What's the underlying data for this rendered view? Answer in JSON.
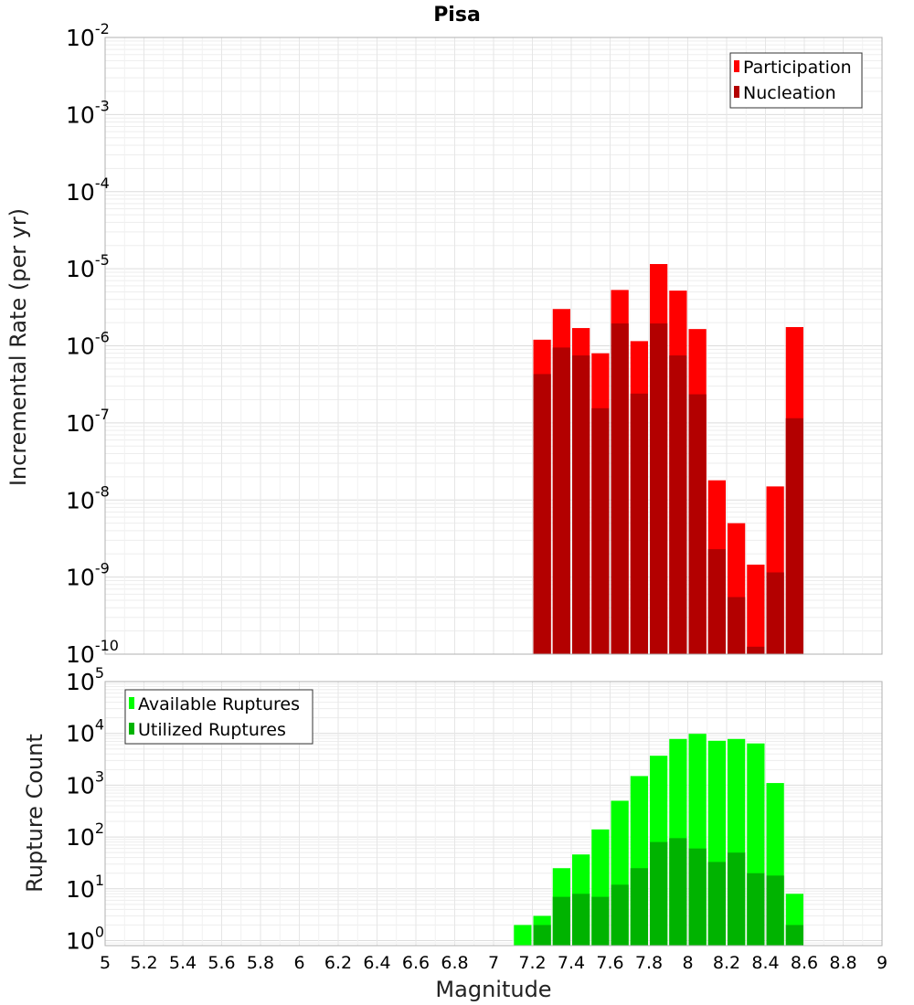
{
  "title": "Pisa",
  "colors": {
    "participation": "#ff0000",
    "nucleation": "#b30000",
    "available": "#00ff00",
    "utilized": "#00b300",
    "grid": "#e6e6e6",
    "frame": "#b0b0b0"
  },
  "chart_data": [
    {
      "type": "bar",
      "subtitle": "",
      "xlabel": "Magnitude",
      "ylabel": "Incremental Rate (per yr)",
      "y_scale": "log",
      "ylim": [
        1e-10,
        0.01
      ],
      "xlim": [
        5,
        9
      ],
      "grid": true,
      "legend_position": "top-right",
      "y_ticks": [
        {
          "base": "10",
          "exp": "-10"
        },
        {
          "base": "10",
          "exp": "-9"
        },
        {
          "base": "10",
          "exp": "-8"
        },
        {
          "base": "10",
          "exp": "-7"
        },
        {
          "base": "10",
          "exp": "-6"
        },
        {
          "base": "10",
          "exp": "-5"
        },
        {
          "base": "10",
          "exp": "-4"
        },
        {
          "base": "10",
          "exp": "-3"
        },
        {
          "base": "10",
          "exp": "-2"
        }
      ],
      "x": [
        7.25,
        7.35,
        7.45,
        7.55,
        7.65,
        7.75,
        7.85,
        7.95,
        8.05,
        8.15,
        8.25,
        8.35,
        8.45,
        8.55
      ],
      "series": [
        {
          "name": "Participation",
          "values": [
            1.2e-06,
            3e-06,
            1.7e-06,
            8e-07,
            5.3e-06,
            1.15e-06,
            1.15e-05,
            5.2e-06,
            1.65e-06,
            1.8e-08,
            5e-09,
            1.45e-09,
            1.5e-08,
            1.75e-06
          ]
        },
        {
          "name": "Nucleation",
          "values": [
            4.3e-07,
            9.5e-07,
            7.5e-07,
            1.55e-07,
            1.95e-06,
            2.4e-07,
            1.95e-06,
            7.5e-07,
            2.35e-07,
            2.3e-09,
            5.5e-10,
            1.25e-10,
            1.15e-09,
            1.15e-07
          ]
        }
      ]
    },
    {
      "type": "bar",
      "xlabel": "Magnitude",
      "ylabel": "Rupture Count",
      "y_scale": "log",
      "ylim": [
        0.8,
        100000
      ],
      "xlim": [
        5,
        9
      ],
      "grid": true,
      "legend_position": "top-left",
      "y_ticks": [
        {
          "base": "10",
          "exp": "0"
        },
        {
          "base": "10",
          "exp": "1"
        },
        {
          "base": "10",
          "exp": "2"
        },
        {
          "base": "10",
          "exp": "3"
        },
        {
          "base": "10",
          "exp": "4"
        },
        {
          "base": "10",
          "exp": "5"
        }
      ],
      "x_ticks": [
        "5",
        "5.2",
        "5.4",
        "5.6",
        "5.8",
        "6",
        "6.2",
        "6.4",
        "6.6",
        "6.8",
        "7",
        "7.2",
        "7.4",
        "7.6",
        "7.8",
        "8",
        "8.2",
        "8.4",
        "8.6",
        "8.8",
        "9"
      ],
      "x": [
        7.15,
        7.25,
        7.35,
        7.45,
        7.55,
        7.65,
        7.75,
        7.85,
        7.95,
        8.05,
        8.15,
        8.25,
        8.35,
        8.45,
        8.55
      ],
      "series": [
        {
          "name": "Available Ruptures",
          "values": [
            2,
            3,
            25,
            46,
            140,
            500,
            1500,
            3700,
            7800,
            9800,
            7200,
            7800,
            6400,
            1100,
            8
          ]
        },
        {
          "name": "Utilized Ruptures",
          "values": [
            0,
            2,
            7,
            8,
            7,
            12,
            25,
            80,
            95,
            60,
            33,
            50,
            20,
            18,
            2
          ]
        }
      ]
    }
  ]
}
